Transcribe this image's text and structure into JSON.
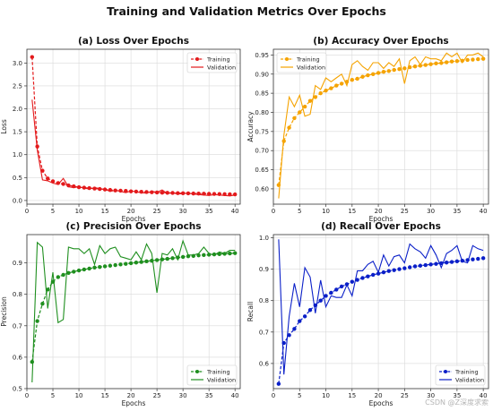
{
  "figure": {
    "title": "Training and Validation Metrics Over Epochs",
    "watermark": "CSDN @Z深度求索"
  },
  "chart_data": [
    {
      "type": "line",
      "id": "loss",
      "title": "(a) Loss Over Epochs",
      "xlabel": "Epochs",
      "ylabel": "Loss",
      "xlim": [
        0,
        41
      ],
      "ylim": [
        -0.08,
        3.3
      ],
      "xticks": [
        0,
        5,
        10,
        15,
        20,
        25,
        30,
        35,
        40
      ],
      "yticks": [
        0.0,
        0.5,
        1.0,
        1.5,
        2.0,
        2.5,
        3.0
      ],
      "ytick_decimals": 1,
      "color": "#e31a1c",
      "legend": "top-right",
      "grid": true,
      "x": [
        1,
        2,
        3,
        4,
        5,
        6,
        7,
        8,
        9,
        10,
        11,
        12,
        13,
        14,
        15,
        16,
        17,
        18,
        19,
        20,
        21,
        22,
        23,
        24,
        25,
        26,
        27,
        28,
        29,
        30,
        31,
        32,
        33,
        34,
        35,
        36,
        37,
        38,
        39,
        40
      ],
      "series": [
        {
          "name": "Training",
          "style": "dashed-marker",
          "values": [
            3.13,
            1.18,
            0.65,
            0.48,
            0.42,
            0.38,
            0.36,
            0.33,
            0.31,
            0.29,
            0.28,
            0.27,
            0.26,
            0.25,
            0.24,
            0.23,
            0.22,
            0.215,
            0.21,
            0.2,
            0.195,
            0.19,
            0.185,
            0.18,
            0.175,
            0.17,
            0.168,
            0.165,
            0.16,
            0.158,
            0.155,
            0.152,
            0.15,
            0.148,
            0.145,
            0.143,
            0.14,
            0.138,
            0.136,
            0.134
          ]
        },
        {
          "name": "Validation",
          "style": "solid",
          "values": [
            2.2,
            1.1,
            0.45,
            0.43,
            0.38,
            0.35,
            0.48,
            0.3,
            0.28,
            0.3,
            0.27,
            0.25,
            0.28,
            0.26,
            0.24,
            0.2,
            0.22,
            0.2,
            0.17,
            0.21,
            0.19,
            0.17,
            0.16,
            0.2,
            0.18,
            0.23,
            0.15,
            0.17,
            0.14,
            0.15,
            0.16,
            0.14,
            0.13,
            0.12,
            0.11,
            0.13,
            0.12,
            0.11,
            0.1,
            0.12
          ]
        }
      ]
    },
    {
      "type": "line",
      "id": "accuracy",
      "title": "(b) Accuracy Over Epochs",
      "xlabel": "Epochs",
      "ylabel": "Accuracy",
      "xlim": [
        0,
        41
      ],
      "ylim": [
        0.56,
        0.965
      ],
      "xticks": [
        0,
        5,
        10,
        15,
        20,
        25,
        30,
        35,
        40
      ],
      "yticks": [
        0.6,
        0.65,
        0.7,
        0.75,
        0.8,
        0.85,
        0.9,
        0.95
      ],
      "ytick_decimals": 2,
      "color": "#f5a300",
      "legend": "top-left",
      "grid": true,
      "x": [
        1,
        2,
        3,
        4,
        5,
        6,
        7,
        8,
        9,
        10,
        11,
        12,
        13,
        14,
        15,
        16,
        17,
        18,
        19,
        20,
        21,
        22,
        23,
        24,
        25,
        26,
        27,
        28,
        29,
        30,
        31,
        32,
        33,
        34,
        35,
        36,
        37,
        38,
        39,
        40
      ],
      "series": [
        {
          "name": "Training",
          "style": "dashed-marker",
          "values": [
            0.61,
            0.725,
            0.76,
            0.785,
            0.8,
            0.815,
            0.83,
            0.84,
            0.85,
            0.857,
            0.863,
            0.87,
            0.875,
            0.88,
            0.885,
            0.888,
            0.893,
            0.897,
            0.9,
            0.903,
            0.906,
            0.908,
            0.911,
            0.913,
            0.915,
            0.918,
            0.92,
            0.922,
            0.924,
            0.926,
            0.928,
            0.929,
            0.931,
            0.933,
            0.934,
            0.935,
            0.937,
            0.938,
            0.939,
            0.94
          ]
        },
        {
          "name": "Validation",
          "style": "solid",
          "values": [
            0.575,
            0.74,
            0.84,
            0.815,
            0.845,
            0.79,
            0.795,
            0.87,
            0.86,
            0.89,
            0.88,
            0.89,
            0.9,
            0.87,
            0.925,
            0.935,
            0.92,
            0.91,
            0.93,
            0.93,
            0.915,
            0.93,
            0.92,
            0.94,
            0.875,
            0.935,
            0.945,
            0.925,
            0.945,
            0.94,
            0.94,
            0.935,
            0.955,
            0.945,
            0.955,
            0.93,
            0.95,
            0.95,
            0.955,
            0.945
          ]
        }
      ]
    },
    {
      "type": "line",
      "id": "precision",
      "title": "(c) Precision Over Epochs",
      "xlabel": "Epochs",
      "ylabel": "Precision",
      "xlim": [
        0,
        41
      ],
      "ylim": [
        0.5,
        0.99
      ],
      "xticks": [
        0,
        5,
        10,
        15,
        20,
        25,
        30,
        35,
        40
      ],
      "yticks": [
        0.5,
        0.6,
        0.7,
        0.8,
        0.9
      ],
      "ytick_decimals": 1,
      "color": "#1f8f1f",
      "legend": "bottom-right",
      "grid": true,
      "x": [
        1,
        2,
        3,
        4,
        5,
        6,
        7,
        8,
        9,
        10,
        11,
        12,
        13,
        14,
        15,
        16,
        17,
        18,
        19,
        20,
        21,
        22,
        23,
        24,
        25,
        26,
        27,
        28,
        29,
        30,
        31,
        32,
        33,
        34,
        35,
        36,
        37,
        38,
        39,
        40
      ],
      "series": [
        {
          "name": "Training",
          "style": "dashed-marker",
          "values": [
            0.585,
            0.715,
            0.77,
            0.815,
            0.84,
            0.855,
            0.862,
            0.868,
            0.872,
            0.876,
            0.879,
            0.882,
            0.885,
            0.887,
            0.889,
            0.891,
            0.893,
            0.895,
            0.897,
            0.899,
            0.901,
            0.903,
            0.905,
            0.907,
            0.909,
            0.911,
            0.913,
            0.915,
            0.917,
            0.919,
            0.921,
            0.922,
            0.924,
            0.925,
            0.926,
            0.927,
            0.928,
            0.929,
            0.93,
            0.931
          ]
        },
        {
          "name": "Validation",
          "style": "solid",
          "values": [
            0.52,
            0.965,
            0.95,
            0.755,
            0.87,
            0.71,
            0.72,
            0.95,
            0.945,
            0.945,
            0.93,
            0.945,
            0.895,
            0.955,
            0.93,
            0.945,
            0.95,
            0.92,
            0.915,
            0.91,
            0.935,
            0.91,
            0.96,
            0.93,
            0.805,
            0.93,
            0.925,
            0.945,
            0.91,
            0.97,
            0.925,
            0.925,
            0.93,
            0.95,
            0.93,
            0.925,
            0.935,
            0.93,
            0.94,
            0.94
          ]
        }
      ]
    },
    {
      "type": "line",
      "id": "recall",
      "title": "(d) Recall Over Epochs",
      "xlabel": "Epochs",
      "ylabel": "Recall",
      "xlim": [
        0,
        41
      ],
      "ylim": [
        0.52,
        1.01
      ],
      "xticks": [
        0,
        5,
        10,
        15,
        20,
        25,
        30,
        35,
        40
      ],
      "yticks": [
        0.6,
        0.7,
        0.8,
        0.9,
        1.0
      ],
      "ytick_decimals": 1,
      "color": "#0a1fc8",
      "legend": "bottom-right",
      "grid": true,
      "x": [
        1,
        2,
        3,
        4,
        5,
        6,
        7,
        8,
        9,
        10,
        11,
        12,
        13,
        14,
        15,
        16,
        17,
        18,
        19,
        20,
        21,
        22,
        23,
        24,
        25,
        26,
        27,
        28,
        29,
        30,
        31,
        32,
        33,
        34,
        35,
        36,
        37,
        38,
        39,
        40
      ],
      "series": [
        {
          "name": "Training",
          "style": "dashed-marker",
          "values": [
            0.535,
            0.665,
            0.69,
            0.71,
            0.735,
            0.75,
            0.77,
            0.785,
            0.8,
            0.815,
            0.825,
            0.835,
            0.845,
            0.852,
            0.86,
            0.866,
            0.872,
            0.877,
            0.882,
            0.886,
            0.89,
            0.894,
            0.897,
            0.9,
            0.903,
            0.906,
            0.909,
            0.911,
            0.913,
            0.915,
            0.917,
            0.919,
            0.921,
            0.923,
            0.925,
            0.927,
            0.929,
            0.931,
            0.933,
            0.935
          ]
        },
        {
          "name": "Validation",
          "style": "solid",
          "values": [
            0.995,
            0.565,
            0.75,
            0.855,
            0.78,
            0.905,
            0.875,
            0.76,
            0.865,
            0.78,
            0.815,
            0.81,
            0.81,
            0.85,
            0.815,
            0.895,
            0.895,
            0.915,
            0.925,
            0.89,
            0.945,
            0.91,
            0.94,
            0.945,
            0.92,
            0.98,
            0.965,
            0.955,
            0.935,
            0.975,
            0.945,
            0.905,
            0.95,
            0.96,
            0.975,
            0.925,
            0.92,
            0.975,
            0.965,
            0.96
          ]
        }
      ]
    }
  ]
}
